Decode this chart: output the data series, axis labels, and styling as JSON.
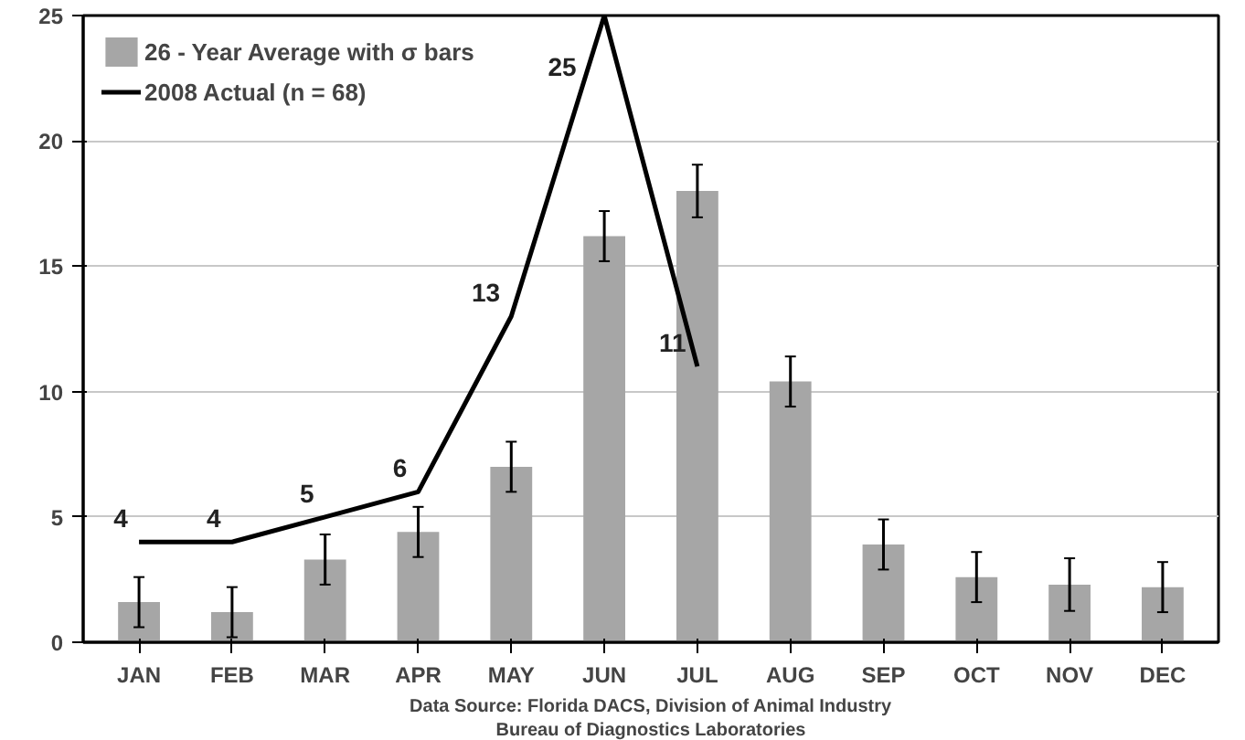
{
  "chart_data": {
    "type": "bar",
    "categories": [
      "JAN",
      "FEB",
      "MAR",
      "APR",
      "MAY",
      "JUN",
      "JUL",
      "AUG",
      "SEP",
      "OCT",
      "NOV",
      "DEC"
    ],
    "series": [
      {
        "name": "26 - Year Average with σ bars",
        "color": "#a6a6a6",
        "values": [
          1.6,
          1.2,
          3.3,
          4.4,
          7.0,
          16.2,
          18.0,
          10.4,
          3.9,
          2.6,
          2.3,
          2.2
        ],
        "errors": [
          1.0,
          1.0,
          1.0,
          1.0,
          1.0,
          1.0,
          1.05,
          1.0,
          1.0,
          1.0,
          1.05,
          1.0
        ]
      },
      {
        "name": "2008 Actual (n = 68)",
        "type": "line",
        "color": "#000000",
        "values": [
          4,
          4,
          5,
          6,
          13,
          25,
          11,
          null,
          null,
          null,
          null,
          null
        ],
        "data_labels": true
      }
    ],
    "ylim": [
      0,
      25
    ],
    "yticks": [
      0,
      5,
      10,
      15,
      20,
      25
    ],
    "grid": "y",
    "legend": "top left",
    "marker": "none",
    "line_style": "solid",
    "annotations": [
      "Data Source: Florida DACS, Division of Animal Industry",
      "Bureau of Diagnostics Laboratories"
    ]
  }
}
